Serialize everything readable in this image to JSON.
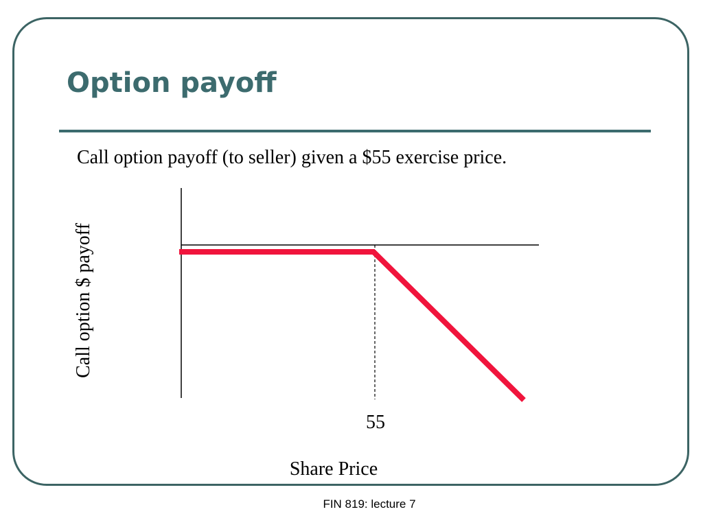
{
  "slide": {
    "title": "Option payoff",
    "subtitle": "Call option payoff  (to seller) given a $55 exercise price.",
    "footer": "FIN 819: lecture 7",
    "colors": {
      "title": "#3c6b6e",
      "frame": "#3c6464",
      "payoff_line": "#f0143c"
    }
  },
  "diagram": {
    "ylabel": "Call option $ payoff",
    "xlabel": "Share Price",
    "strike_label": "55",
    "strike_price": 55,
    "payoff_segments": [
      {
        "from": "left edge",
        "to": "strike",
        "shape": "flat at zero"
      },
      {
        "from": "strike",
        "to": "right edge",
        "shape": "declining"
      }
    ]
  }
}
